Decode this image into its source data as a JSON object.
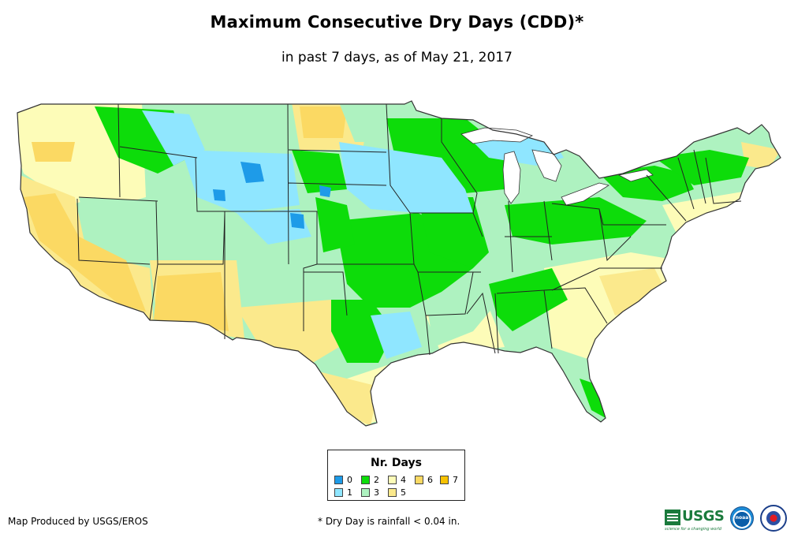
{
  "title": "Maximum Consecutive Dry Days (CDD)*",
  "subtitle": "in past 7 days, as of May 21, 2017",
  "legend": {
    "title": "Nr. Days",
    "items": [
      {
        "label": "0",
        "color": "#1e9be8"
      },
      {
        "label": "1",
        "color": "#8fe6ff"
      },
      {
        "label": "2",
        "color": "#0ddc0a"
      },
      {
        "label": "3",
        "color": "#aef2c0"
      },
      {
        "label": "4",
        "color": "#fdfcb8"
      },
      {
        "label": "5",
        "color": "#fbe98c"
      },
      {
        "label": "6",
        "color": "#fbd963"
      },
      {
        "label": "7",
        "color": "#f7c202"
      }
    ]
  },
  "credit": "Map Produced by USGS/EROS",
  "footnote": "* Dry Day is rainfall < 0.04 in.",
  "logos": {
    "usgs_text": "USGS",
    "usgs_tagline": "science for a changing world",
    "noaa_icon": "noaa-logo-icon",
    "nws_icon": "nws-logo-icon"
  },
  "colors": {
    "state_border": "#222222",
    "coast": "#333333"
  }
}
